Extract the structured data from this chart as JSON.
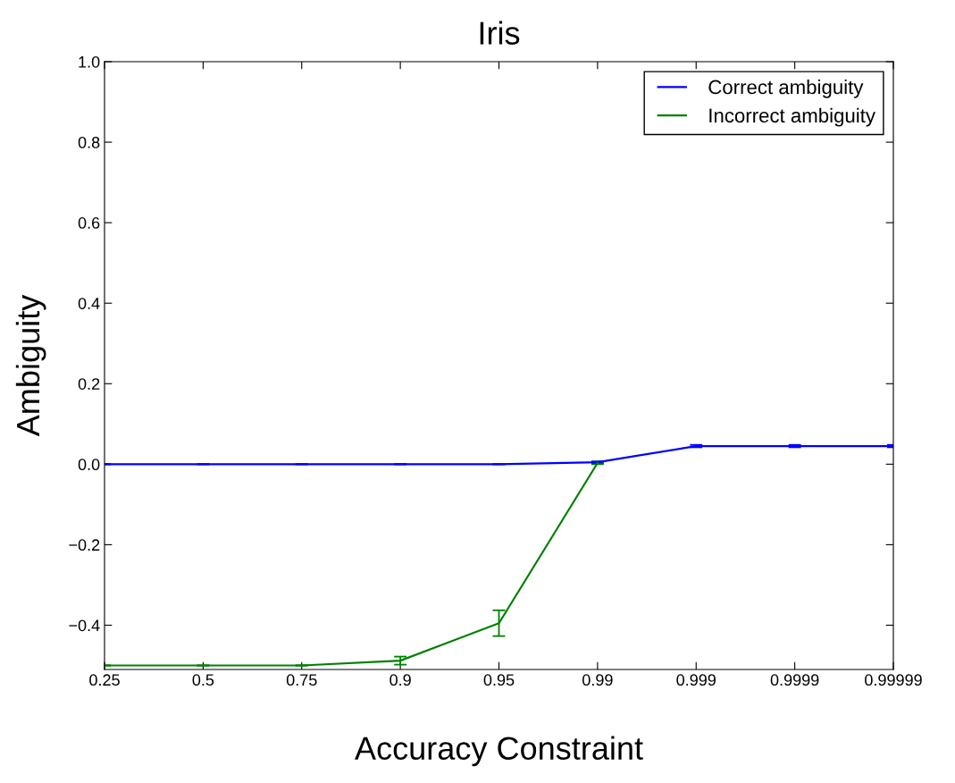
{
  "chart_data": {
    "type": "line",
    "title": "Iris",
    "xlabel": "Accuracy Constraint",
    "ylabel": "Ambiguity",
    "categories": [
      "0.25",
      "0.5",
      "0.75",
      "0.9",
      "0.95",
      "0.99",
      "0.999",
      "0.9999",
      "0.99999"
    ],
    "series": [
      {
        "name": "Correct ambiguity",
        "color": "#0000ff",
        "values": [
          0.0,
          0.0,
          0.0,
          0.0,
          0.0,
          0.005,
          0.045,
          0.045,
          0.045
        ],
        "errors": [
          null,
          null,
          null,
          null,
          null,
          0.002,
          0.003,
          0.003,
          0.003
        ]
      },
      {
        "name": "Incorrect ambiguity",
        "color": "#008000",
        "values": [
          -0.5,
          -0.5,
          -0.5,
          -0.488,
          -0.395,
          0.003,
          null,
          null,
          null
        ],
        "errors": [
          null,
          null,
          null,
          0.01,
          0.032,
          0.003,
          null,
          null,
          null
        ]
      }
    ],
    "ylim": [
      -0.51,
      1.0
    ],
    "yticks": [
      {
        "value": -0.4,
        "label": "−0.4"
      },
      {
        "value": -0.2,
        "label": "−0.2"
      },
      {
        "value": 0,
        "label": "0.0"
      },
      {
        "value": 0.2,
        "label": "0.2"
      },
      {
        "value": 0.4,
        "label": "0.4"
      },
      {
        "value": 0.6,
        "label": "0.6"
      },
      {
        "value": 0.8,
        "label": "0.8"
      },
      {
        "value": 1,
        "label": "1.0"
      }
    ],
    "legend": "top right",
    "grid": false
  }
}
